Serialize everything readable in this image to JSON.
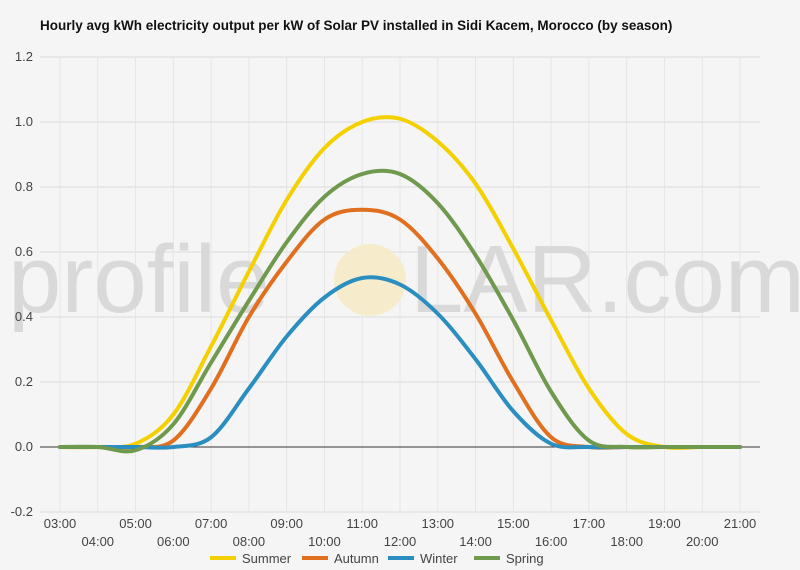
{
  "chart_data": {
    "type": "line",
    "title": "Hourly avg kWh electricity output per kW of Solar PV installed in Sidi Kacem, Morocco (by season)",
    "xlabel": "",
    "ylabel": "",
    "x": [
      "03:00",
      "04:00",
      "05:00",
      "06:00",
      "07:00",
      "08:00",
      "09:00",
      "10:00",
      "11:00",
      "12:00",
      "13:00",
      "14:00",
      "15:00",
      "16:00",
      "17:00",
      "18:00",
      "19:00",
      "20:00",
      "21:00"
    ],
    "ylim": [
      -0.2,
      1.2
    ],
    "yticks": [
      -0.2,
      0.0,
      0.2,
      0.4,
      0.6,
      0.8,
      1.0,
      1.2
    ],
    "yticks_text": [
      "-0.2",
      "0.0",
      "0.2",
      "0.4",
      "0.6",
      "0.8",
      "1.0",
      "1.2"
    ],
    "grid": true,
    "legend_position": "bottom",
    "series": [
      {
        "name": "Summer",
        "color": "#f5d000",
        "values": [
          0,
          0,
          0.01,
          0.1,
          0.31,
          0.54,
          0.76,
          0.92,
          1.0,
          1.01,
          0.94,
          0.81,
          0.61,
          0.39,
          0.18,
          0.04,
          0,
          0,
          0
        ]
      },
      {
        "name": "Autumn",
        "color": "#e07020",
        "values": [
          0,
          0,
          0,
          0.02,
          0.18,
          0.4,
          0.57,
          0.7,
          0.73,
          0.7,
          0.58,
          0.41,
          0.2,
          0.03,
          0,
          0,
          0,
          0,
          0
        ]
      },
      {
        "name": "Winter",
        "color": "#2b8ec0",
        "values": [
          0,
          0,
          0,
          0,
          0.03,
          0.18,
          0.34,
          0.46,
          0.52,
          0.5,
          0.41,
          0.27,
          0.11,
          0.01,
          0,
          0,
          0,
          0,
          0
        ]
      },
      {
        "name": "Spring",
        "color": "#6f9a4e",
        "values": [
          0,
          0,
          -0.01,
          0.07,
          0.26,
          0.45,
          0.63,
          0.77,
          0.84,
          0.84,
          0.75,
          0.59,
          0.39,
          0.17,
          0.02,
          0,
          0,
          0,
          0
        ]
      }
    ]
  },
  "watermark": {
    "left": "profile",
    "right": "LAR.com"
  }
}
